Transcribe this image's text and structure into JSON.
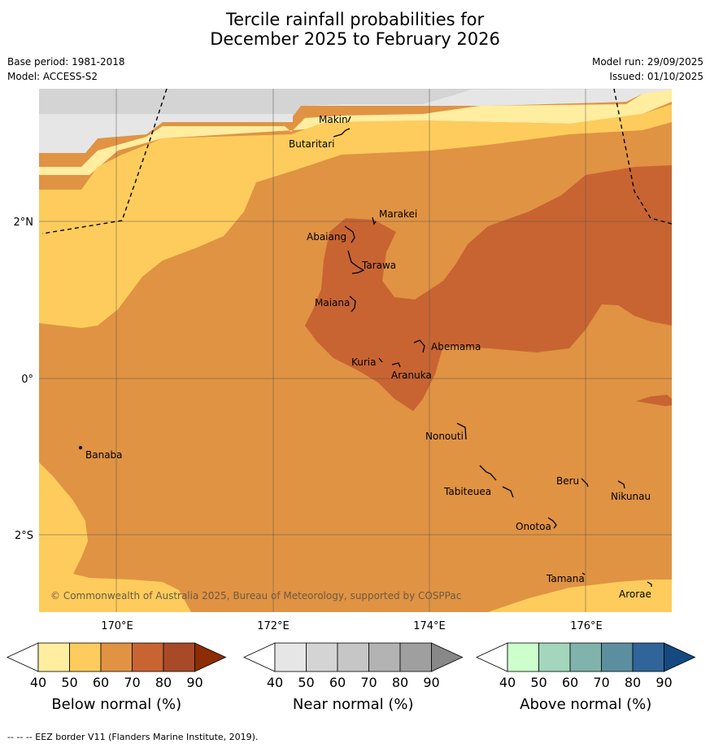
{
  "title": {
    "line1": "Tercile rainfall probabilities for",
    "line2": "December 2025 to February 2026"
  },
  "meta": {
    "base_period": "Base period: 1981-2018",
    "model": "Model: ACCESS-S2",
    "model_run": "Model run: 29/09/2025",
    "issued": "Issued: 01/10/2025"
  },
  "map": {
    "lat_labels": [
      "2°N",
      "0°",
      "2°S"
    ],
    "lon_labels": [
      "170°E",
      "172°E",
      "174°E",
      "176°E"
    ],
    "copyright": "© Commonwealth of Australia 2025, Bureau of Meteorology, supported by COSPPac",
    "places": [
      "Makin",
      "Butaritari",
      "Marakei",
      "Abaiang",
      "Tarawa",
      "Maiana",
      "Abemama",
      "Kuria",
      "Aranuka",
      "Nonouti",
      "Banaba",
      "Tabiteuea",
      "Beru",
      "Nikunau",
      "Onotoa",
      "Tamana",
      "Arorae"
    ]
  },
  "colorbars": [
    {
      "label": "Below normal (%)",
      "ticks": [
        "40",
        "50",
        "60",
        "70",
        "80",
        "90"
      ],
      "colors": [
        "#ffffff",
        "#ffeda0",
        "#fecc5c",
        "#e09343",
        "#c86432",
        "#a84a27",
        "#8c2d04"
      ]
    },
    {
      "label": "Near normal (%)",
      "ticks": [
        "40",
        "50",
        "60",
        "70",
        "80",
        "90"
      ],
      "colors": [
        "#ffffff",
        "#e6e6e6",
        "#d4d4d4",
        "#c6c6c6",
        "#b3b3b3",
        "#9f9f9f",
        "#888888"
      ]
    },
    {
      "label": "Above normal (%)",
      "ticks": [
        "40",
        "50",
        "60",
        "70",
        "80",
        "90"
      ],
      "colors": [
        "#ffffff",
        "#ccffcc",
        "#a3d6bc",
        "#7fb3ab",
        "#5b8fa0",
        "#2f6599",
        "#144a7f"
      ]
    }
  ],
  "footer": "--  --  -- EEZ border V11 (Flanders Marine Institute, 2019).",
  "colors": {
    "below_50": "#ffeda0",
    "below_60": "#fecc5c",
    "below_70": "#e09343",
    "below_80": "#c86432",
    "near_40": "#e6e6e6",
    "near_50": "#d4d4d4"
  }
}
